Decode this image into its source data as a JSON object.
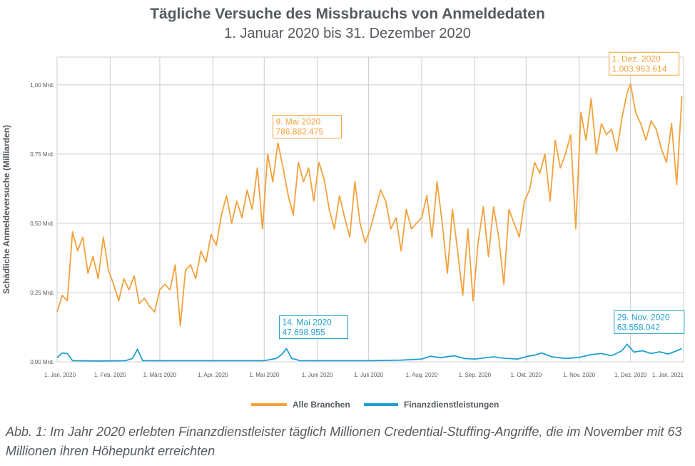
{
  "title": "Tägliche Versuche des Missbrauchs von Anmeldedaten",
  "subtitle": "1. Januar 2020 bis 31. Dezember 2020",
  "caption": "Abb. 1: Im Jahr 2020 erlebten Finanzdienstleister täglich Millionen Credential-Stuffing-Angriffe, die im November mit 63 Millionen ihren Höhepunkt erreichten",
  "colors": {
    "all": "#f4a13c",
    "fin": "#1e9fd2",
    "grid": "#cccccc",
    "text": "#555a5f"
  },
  "chart_data": {
    "type": "line",
    "ylabel": "Schädliche Anmeldeversuche (Milliarden)",
    "ylim": [
      0,
      1.1
    ],
    "yticks": [
      {
        "value": 0,
        "label": "0,00 Mrd."
      },
      {
        "value": 0.25,
        "label": "0,25 Mrd."
      },
      {
        "value": 0.5,
        "label": "0,50 Mrd."
      },
      {
        "value": 0.75,
        "label": "0,75 Mrd."
      },
      {
        "value": 1.0,
        "label": "1,00 Mrd."
      }
    ],
    "xlim": [
      "2020-01-01",
      "2021-01-01"
    ],
    "xticks": [
      {
        "date": "2020-01-01",
        "label": "1. Jan. 2020"
      },
      {
        "date": "2020-02-01",
        "label": "1. Feb. 2020"
      },
      {
        "date": "2020-03-01",
        "label": "1. März 2020"
      },
      {
        "date": "2020-04-01",
        "label": "1. Apr. 2020"
      },
      {
        "date": "2020-05-01",
        "label": "1. Mai 2020"
      },
      {
        "date": "2020-06-01",
        "label": "1. Juni 2020"
      },
      {
        "date": "2020-07-01",
        "label": "1. Juli 2020"
      },
      {
        "date": "2020-08-01",
        "label": "1. Aug. 2020"
      },
      {
        "date": "2020-09-01",
        "label": "1. Sep. 2020"
      },
      {
        "date": "2020-10-01",
        "label": "1. Okt. 2020"
      },
      {
        "date": "2020-11-01",
        "label": "1. Nov. 2020"
      },
      {
        "date": "2020-12-01",
        "label": "1. Dez. 2020"
      },
      {
        "date": "2021-01-01",
        "label": "1. Jan. 2021"
      }
    ],
    "grid": true,
    "legend_position": "bottom-center",
    "series": [
      {
        "name": "Alle Branchen",
        "color": "#f4a13c",
        "x": [
          "2020-01-01",
          "2020-01-04",
          "2020-01-07",
          "2020-01-10",
          "2020-01-13",
          "2020-01-16",
          "2020-01-19",
          "2020-01-22",
          "2020-01-25",
          "2020-01-28",
          "2020-01-31",
          "2020-02-03",
          "2020-02-06",
          "2020-02-09",
          "2020-02-12",
          "2020-02-15",
          "2020-02-18",
          "2020-02-21",
          "2020-02-24",
          "2020-02-27",
          "2020-03-01",
          "2020-03-04",
          "2020-03-07",
          "2020-03-10",
          "2020-03-13",
          "2020-03-16",
          "2020-03-19",
          "2020-03-22",
          "2020-03-25",
          "2020-03-28",
          "2020-03-31",
          "2020-04-03",
          "2020-04-06",
          "2020-04-09",
          "2020-04-12",
          "2020-04-15",
          "2020-04-18",
          "2020-04-21",
          "2020-04-24",
          "2020-04-27",
          "2020-04-30",
          "2020-05-03",
          "2020-05-06",
          "2020-05-09",
          "2020-05-12",
          "2020-05-15",
          "2020-05-18",
          "2020-05-21",
          "2020-05-24",
          "2020-05-27",
          "2020-05-30",
          "2020-06-02",
          "2020-06-05",
          "2020-06-08",
          "2020-06-11",
          "2020-06-14",
          "2020-06-17",
          "2020-06-20",
          "2020-06-23",
          "2020-06-26",
          "2020-06-29",
          "2020-07-02",
          "2020-07-05",
          "2020-07-08",
          "2020-07-11",
          "2020-07-14",
          "2020-07-17",
          "2020-07-20",
          "2020-07-23",
          "2020-07-26",
          "2020-07-29",
          "2020-08-01",
          "2020-08-04",
          "2020-08-07",
          "2020-08-10",
          "2020-08-13",
          "2020-08-16",
          "2020-08-19",
          "2020-08-22",
          "2020-08-25",
          "2020-08-28",
          "2020-08-31",
          "2020-09-03",
          "2020-09-06",
          "2020-09-09",
          "2020-09-12",
          "2020-09-15",
          "2020-09-18",
          "2020-09-21",
          "2020-09-24",
          "2020-09-27",
          "2020-09-30",
          "2020-10-03",
          "2020-10-06",
          "2020-10-09",
          "2020-10-12",
          "2020-10-15",
          "2020-10-18",
          "2020-10-21",
          "2020-10-24",
          "2020-10-27",
          "2020-10-30",
          "2020-11-02",
          "2020-11-05",
          "2020-11-08",
          "2020-11-11",
          "2020-11-14",
          "2020-11-17",
          "2020-11-20",
          "2020-11-23",
          "2020-11-26",
          "2020-11-29",
          "2020-12-01",
          "2020-12-04",
          "2020-12-07",
          "2020-12-10",
          "2020-12-13",
          "2020-12-16",
          "2020-12-19",
          "2020-12-22",
          "2020-12-25",
          "2020-12-28",
          "2020-12-31"
        ],
        "values": [
          0.18,
          0.24,
          0.22,
          0.47,
          0.4,
          0.45,
          0.32,
          0.38,
          0.3,
          0.45,
          0.33,
          0.28,
          0.22,
          0.3,
          0.26,
          0.31,
          0.21,
          0.23,
          0.2,
          0.18,
          0.26,
          0.28,
          0.26,
          0.35,
          0.13,
          0.33,
          0.35,
          0.3,
          0.4,
          0.36,
          0.46,
          0.42,
          0.53,
          0.6,
          0.5,
          0.58,
          0.52,
          0.62,
          0.55,
          0.7,
          0.48,
          0.75,
          0.65,
          0.79,
          0.7,
          0.6,
          0.53,
          0.72,
          0.65,
          0.7,
          0.58,
          0.72,
          0.66,
          0.55,
          0.48,
          0.6,
          0.52,
          0.45,
          0.65,
          0.5,
          0.43,
          0.48,
          0.55,
          0.62,
          0.58,
          0.48,
          0.52,
          0.4,
          0.55,
          0.48,
          0.5,
          0.52,
          0.6,
          0.45,
          0.65,
          0.5,
          0.32,
          0.55,
          0.4,
          0.24,
          0.48,
          0.22,
          0.43,
          0.56,
          0.38,
          0.56,
          0.45,
          0.28,
          0.55,
          0.5,
          0.45,
          0.58,
          0.62,
          0.72,
          0.68,
          0.75,
          0.58,
          0.8,
          0.7,
          0.75,
          0.82,
          0.48,
          0.9,
          0.8,
          0.95,
          0.75,
          0.86,
          0.82,
          0.84,
          0.76,
          0.88,
          0.97,
          1.004,
          0.9,
          0.86,
          0.8,
          0.87,
          0.84,
          0.77,
          0.72,
          0.86,
          0.64,
          0.96
        ]
      },
      {
        "name": "Finanzdienstleistungen",
        "color": "#1e9fd2",
        "x": [
          "2020-01-01",
          "2020-01-04",
          "2020-01-07",
          "2020-01-10",
          "2020-01-25",
          "2020-02-10",
          "2020-02-14",
          "2020-02-17",
          "2020-02-20",
          "2020-03-10",
          "2020-04-01",
          "2020-04-20",
          "2020-05-01",
          "2020-05-08",
          "2020-05-11",
          "2020-05-14",
          "2020-05-17",
          "2020-05-22",
          "2020-06-10",
          "2020-07-01",
          "2020-07-20",
          "2020-08-01",
          "2020-08-06",
          "2020-08-12",
          "2020-08-20",
          "2020-08-26",
          "2020-09-01",
          "2020-09-12",
          "2020-09-18",
          "2020-09-26",
          "2020-10-02",
          "2020-10-06",
          "2020-10-10",
          "2020-10-16",
          "2020-10-24",
          "2020-11-01",
          "2020-11-08",
          "2020-11-14",
          "2020-11-20",
          "2020-11-26",
          "2020-11-29",
          "2020-12-03",
          "2020-12-08",
          "2020-12-13",
          "2020-12-18",
          "2020-12-23",
          "2020-12-28",
          "2020-12-31"
        ],
        "values": [
          0.015,
          0.032,
          0.03,
          0.004,
          0.003,
          0.004,
          0.012,
          0.045,
          0.004,
          0.004,
          0.004,
          0.004,
          0.004,
          0.012,
          0.025,
          0.0477,
          0.012,
          0.004,
          0.004,
          0.004,
          0.006,
          0.01,
          0.02,
          0.015,
          0.022,
          0.012,
          0.01,
          0.018,
          0.013,
          0.01,
          0.02,
          0.024,
          0.032,
          0.018,
          0.012,
          0.016,
          0.026,
          0.03,
          0.022,
          0.04,
          0.0636,
          0.035,
          0.04,
          0.03,
          0.036,
          0.028,
          0.04,
          0.048
        ]
      }
    ],
    "annotations": [
      {
        "series": 0,
        "date": "2020-05-09",
        "value": 0.787,
        "line1": "9. Mai 2020",
        "line2": "786.882.475"
      },
      {
        "series": 0,
        "date": "2020-12-01",
        "value": 1.004,
        "line1": "1. Dez. 2020",
        "line2": "1.003.963.614"
      },
      {
        "series": 1,
        "date": "2020-05-14",
        "value": 0.0477,
        "line1": "14. Mai 2020",
        "line2": "47.698.955"
      },
      {
        "series": 1,
        "date": "2020-11-29",
        "value": 0.0636,
        "line1": "29. Nov. 2020",
        "line2": "63.558.042"
      }
    ]
  }
}
